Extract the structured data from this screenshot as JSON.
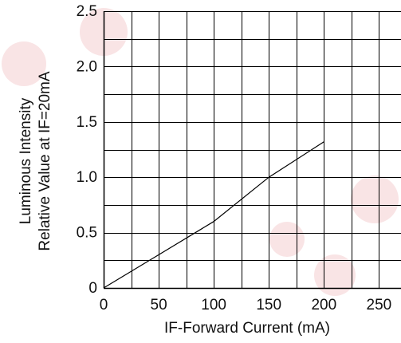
{
  "chart_data": {
    "type": "line",
    "xlabel": "IF-Forward Current (mA)",
    "ylabel_lines": [
      "Luminous Intensity",
      "Relative Value at IF=20mA"
    ],
    "xlim": [
      0,
      270
    ],
    "ylim": [
      0,
      2.5
    ],
    "x_ticks": [
      0,
      50,
      100,
      150,
      200,
      250
    ],
    "x_tick_labels": [
      "0",
      "50",
      "100",
      "150",
      "200",
      "250"
    ],
    "y_ticks": [
      0,
      0.5,
      1.0,
      1.5,
      2.0,
      2.5
    ],
    "y_tick_labels": [
      "0",
      "0.5",
      "1.0",
      "1.5",
      "2.0",
      "2.5"
    ],
    "grid": true,
    "grid_x_step": 25,
    "grid_y_step": 0.25,
    "series": [
      {
        "x": [
          0,
          50,
          100,
          150,
          200
        ],
        "y": [
          0,
          0.3,
          0.6,
          1.0,
          1.32
        ]
      }
    ],
    "colors": {
      "line": "#000000",
      "grid": "#000000",
      "watermark": "#cf1f2b"
    }
  }
}
